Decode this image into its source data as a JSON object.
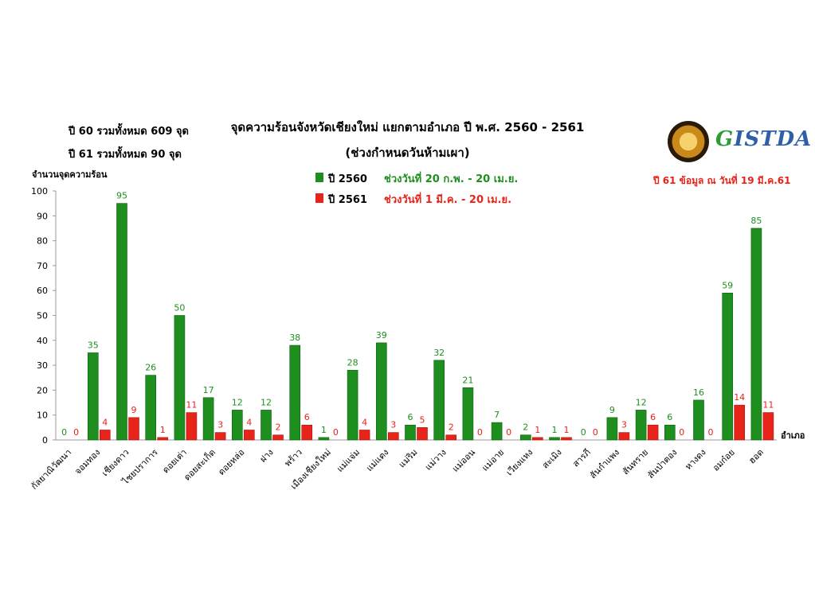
{
  "header": {
    "title": "จุดความร้อนจังหวัดเชียงใหม่ แยกตามอำเภอ ปี พ.ศ. 2560 - 2561",
    "subtitle": "(ช่วงกำหนดวันห้ามเผา)",
    "total_60": "ปี 60 รวมทั้งหมด 609 จุด",
    "total_61": "ปี 61 รวมทั้งหมด  90 จุด",
    "note": "ปี 61 ข้อมูล ณ วันที่ 19 มี.ค.61"
  },
  "logo": {
    "text": "GISTDA"
  },
  "legend": [
    {
      "year": "ปี 2560",
      "period": "ช่วงวันที่ 20 ก.พ. - 20 เม.ย.",
      "color": "#1e8f1e"
    },
    {
      "year": "ปี 2561",
      "period": "ช่วงวันที่ 1 มี.ค. - 20 เม.ย.",
      "color": "#e8231a"
    }
  ],
  "chart_data": {
    "type": "bar",
    "ylabel": "จำนวนจุดความร้อน",
    "xlabel": "อำเภอ",
    "ylim": [
      0,
      100
    ],
    "yticks": [
      0,
      10,
      20,
      30,
      40,
      50,
      60,
      70,
      80,
      90,
      100
    ],
    "grid": false,
    "categories": [
      "กัลยาณิวัฒนา",
      "จอมทอง",
      "เชียงดาว",
      "ไชยปราการ",
      "ดอยเต่า",
      "ดอยสะเก็ด",
      "ดอยหล่อ",
      "ฝาง",
      "พร้าว",
      "เมืองเชียงใหม่",
      "แม่แจ่ม",
      "แม่แตง",
      "แม่ริม",
      "แม่วาง",
      "แม่ออน",
      "แม่อาย",
      "เวียงแหง",
      "สะเมิง",
      "สารภี",
      "สันกำแพง",
      "สันทราย",
      "สันป่าตอง",
      "หางดง",
      "อมก๋อย",
      "ฮอด"
    ],
    "series": [
      {
        "name": "ปี 2560",
        "color": "#1e8f1e",
        "values": [
          0,
          35,
          95,
          26,
          50,
          17,
          12,
          12,
          38,
          1,
          28,
          39,
          6,
          32,
          21,
          7,
          2,
          1,
          0,
          9,
          12,
          6,
          16,
          59,
          85
        ]
      },
      {
        "name": "ปี 2561",
        "color": "#e8231a",
        "values": [
          0,
          4,
          9,
          1,
          11,
          3,
          4,
          2,
          6,
          0,
          4,
          3,
          5,
          2,
          0,
          0,
          1,
          1,
          0,
          3,
          6,
          0,
          0,
          14,
          11
        ]
      }
    ]
  }
}
